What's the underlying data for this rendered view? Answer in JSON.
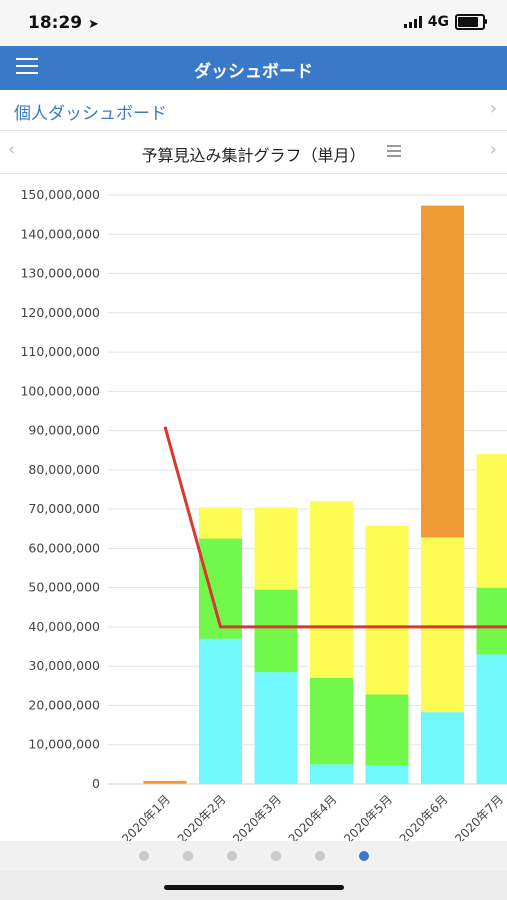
{
  "status": {
    "time": "18:29",
    "network": "4G"
  },
  "nav": {
    "title": "ダッシュボード"
  },
  "dashboard_row": {
    "label": "個人ダッシュボード"
  },
  "chart_header": {
    "title": "予算見込み集計グラフ（単月）"
  },
  "icons": {
    "menu": "hamburger-menu-icon",
    "location": "location-arrow-icon",
    "chevron_right": "chevron-right-icon",
    "chevron_left": "chevron-left-icon",
    "chart_menu": "chart-menu-icon"
  },
  "colors": {
    "nav": "#3a79c8",
    "cyan": "#6ff7fb",
    "green": "#72f74b",
    "yellow": "#fcfc54",
    "orange": "#f09a36",
    "line": "#d9372f",
    "active_dot": "#3a79c8"
  },
  "pagination": {
    "count": 6,
    "active_index": 5
  },
  "chart_data": {
    "type": "bar",
    "title": "",
    "xlabel": "",
    "ylabel": "",
    "ylim": [
      0,
      150000000
    ],
    "y_ticks": [
      "0",
      "10,000,000",
      "20,000,000",
      "30,000,000",
      "40,000,000",
      "50,000,000",
      "60,000,000",
      "70,000,000",
      "80,000,000",
      "90,000,000",
      "100,000,000",
      "110,000,000",
      "120,000,000",
      "130,000,000",
      "140,000,000",
      "150,000,000"
    ],
    "categories": [
      "2020年1月",
      "2020年2月",
      "2020年3月",
      "2020年4月",
      "2020年5月",
      "2020年6月",
      "2020年7月"
    ],
    "stacked": true,
    "series": [
      {
        "type": "bar",
        "color": "#6ff7fb",
        "values": [
          0,
          37000000,
          28500000,
          5000000,
          4800000,
          18300000,
          33000000
        ]
      },
      {
        "type": "bar",
        "color": "#72f74b",
        "values": [
          0,
          25500000,
          21000000,
          22000000,
          18000000,
          0,
          17000000
        ]
      },
      {
        "type": "bar",
        "color": "#fcfc54",
        "values": [
          0,
          8000000,
          21000000,
          45000000,
          43000000,
          44500000,
          34000000
        ]
      },
      {
        "type": "bar",
        "color": "#f09a36",
        "values": [
          800000,
          0,
          0,
          0,
          0,
          84500000,
          0
        ]
      },
      {
        "type": "line",
        "color": "#d9372f",
        "values": [
          91000000,
          40000000,
          40000000,
          40000000,
          40000000,
          40000000,
          40000000
        ]
      }
    ],
    "grid": true,
    "legend": "none"
  }
}
